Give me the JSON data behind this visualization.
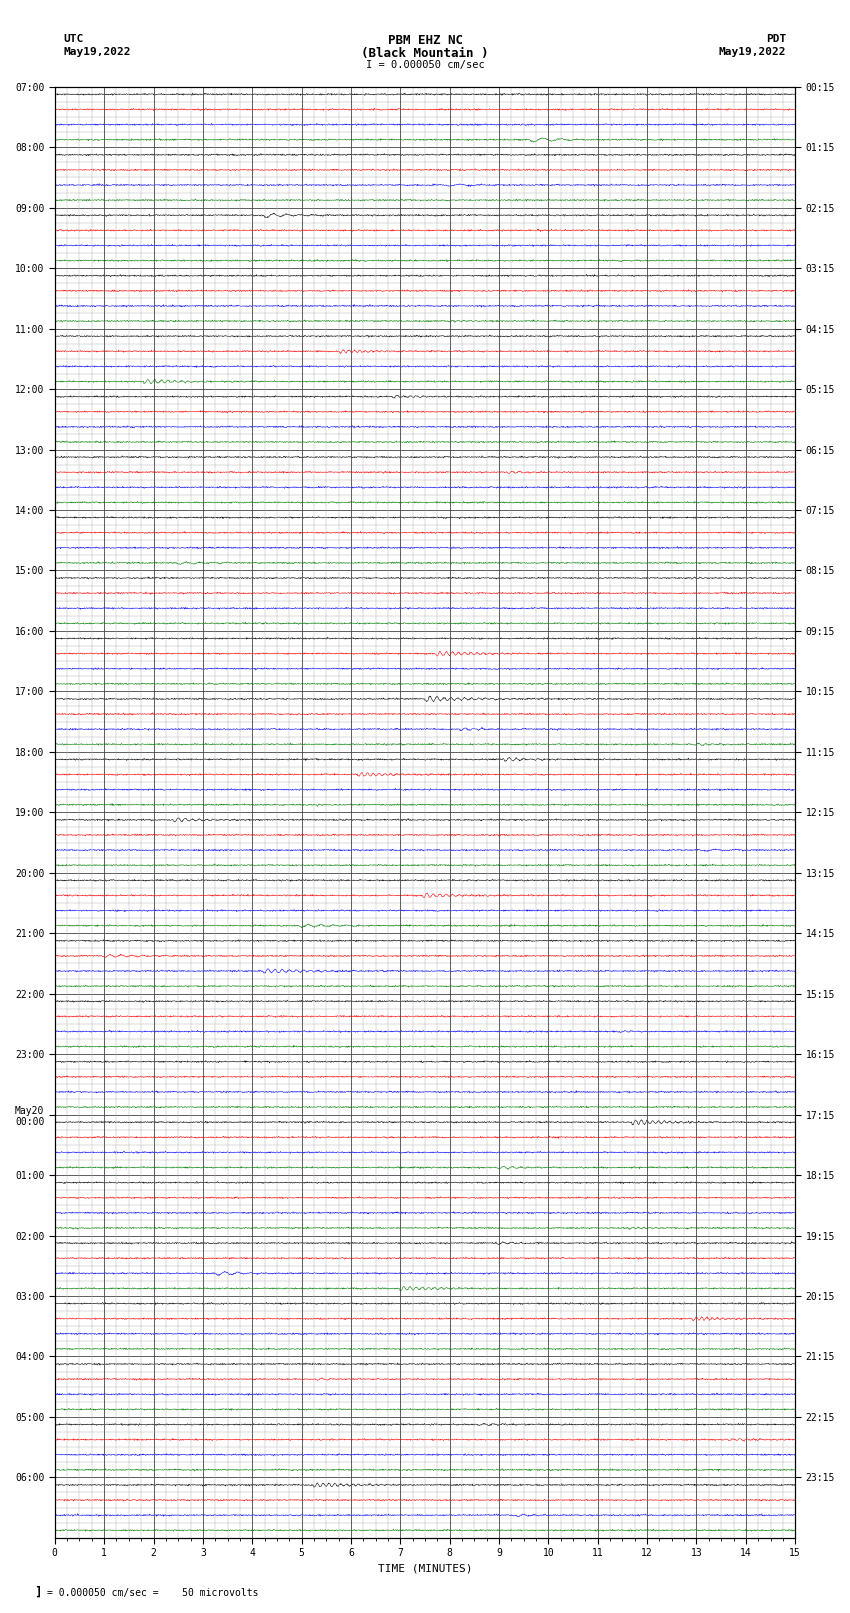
{
  "title_line1": "PBM EHZ NC",
  "title_line2": "(Black Mountain )",
  "title_line3": "I = 0.000050 cm/sec",
  "left_label_line1": "UTC",
  "left_label_line2": "May19,2022",
  "right_label_line1": "PDT",
  "right_label_line2": "May19,2022",
  "xlabel": "TIME (MINUTES)",
  "bottom_note": "= 0.000050 cm/sec =    50 microvolts",
  "n_rows": 24,
  "minutes_per_row": 15,
  "background_color": "#ffffff",
  "major_grid_color": "#444444",
  "minor_grid_color": "#aaaaaa",
  "fig_width": 8.5,
  "fig_height": 16.13,
  "dpi": 100,
  "right_tick_labels": [
    "00:15",
    "01:15",
    "02:15",
    "03:15",
    "04:15",
    "05:15",
    "06:15",
    "07:15",
    "08:15",
    "09:15",
    "10:15",
    "11:15",
    "12:15",
    "13:15",
    "14:15",
    "15:15",
    "16:15",
    "17:15",
    "18:15",
    "19:15",
    "20:15",
    "21:15",
    "22:15",
    "23:15"
  ],
  "left_tick_labels": [
    "07:00",
    "08:00",
    "09:00",
    "10:00",
    "11:00",
    "12:00",
    "13:00",
    "14:00",
    "15:00",
    "16:00",
    "17:00",
    "18:00",
    "19:00",
    "20:00",
    "21:00",
    "22:00",
    "23:00",
    "May20\n00:00",
    "01:00",
    "02:00",
    "03:00",
    "04:00",
    "05:00",
    "06:00"
  ],
  "n_sub_per_row": 4,
  "trace_colors": [
    "#000000",
    "#ff0000",
    "#0000ff",
    "#008000"
  ],
  "n_points_per_trace": 1800,
  "trace_amplitude": 0.018,
  "noise_amplitude": 0.006
}
